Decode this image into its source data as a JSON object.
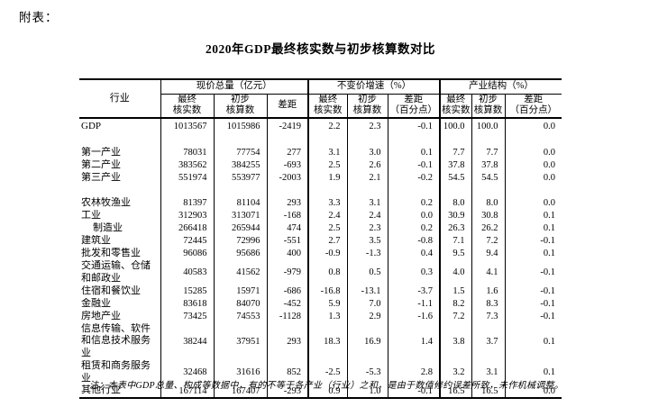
{
  "page": {
    "appendix_label": "附表："
  },
  "table": {
    "title": "2020年GDP最终核实数与初步核算数对比",
    "header": {
      "industry": "行业",
      "groups": [
        {
          "label": "现价总量（亿元）",
          "cols": [
            "最终\n核实数",
            "初步\n核算数",
            "差距"
          ]
        },
        {
          "label": "不变价增速（%）",
          "cols": [
            "最终\n核实数",
            "初步\n核算数",
            "差距\n（百分点）"
          ]
        },
        {
          "label": "产业结构（%）",
          "cols": [
            "最终\n核实数",
            "初步\n核算数",
            "差距\n（百分点）"
          ]
        }
      ]
    },
    "rows": [
      {
        "name": "GDP",
        "gdp": true,
        "values": [
          "1013567",
          "1015986",
          "-2419",
          "2.2",
          "2.3",
          "-0.1",
          "100.0",
          "100.0",
          "0.0"
        ]
      },
      {
        "spacer": true
      },
      {
        "name": "第一产业",
        "values": [
          "78031",
          "77754",
          "277",
          "3.1",
          "3.0",
          "0.1",
          "7.7",
          "7.7",
          "0.0"
        ]
      },
      {
        "name": "第二产业",
        "values": [
          "383562",
          "384255",
          "-693",
          "2.5",
          "2.6",
          "-0.1",
          "37.8",
          "37.8",
          "0.0"
        ]
      },
      {
        "name": "第三产业",
        "values": [
          "551974",
          "553977",
          "-2003",
          "1.9",
          "2.1",
          "-0.2",
          "54.5",
          "54.5",
          "0.0"
        ]
      },
      {
        "spacer": true
      },
      {
        "name": "农林牧渔业",
        "values": [
          "81397",
          "81104",
          "293",
          "3.3",
          "3.1",
          "0.2",
          "8.0",
          "8.0",
          "0.0"
        ]
      },
      {
        "name": "工业",
        "values": [
          "312903",
          "313071",
          "-168",
          "2.4",
          "2.4",
          "0.0",
          "30.9",
          "30.8",
          "0.1"
        ]
      },
      {
        "name": "制造业",
        "indent": true,
        "values": [
          "266418",
          "265944",
          "474",
          "2.5",
          "2.3",
          "0.2",
          "26.3",
          "26.2",
          "0.1"
        ]
      },
      {
        "name": "建筑业",
        "values": [
          "72445",
          "72996",
          "-551",
          "2.7",
          "3.5",
          "-0.8",
          "7.1",
          "7.2",
          "-0.1"
        ]
      },
      {
        "name": "批发和零售业",
        "values": [
          "96086",
          "95686",
          "400",
          "-0.9",
          "-1.3",
          "0.4",
          "9.5",
          "9.4",
          "0.1"
        ]
      },
      {
        "name": "交通运输、仓储和邮政业",
        "values": [
          "40583",
          "41562",
          "-979",
          "0.8",
          "0.5",
          "0.3",
          "4.0",
          "4.1",
          "-0.1"
        ]
      },
      {
        "name": "住宿和餐饮业",
        "values": [
          "15285",
          "15971",
          "-686",
          "-16.8",
          "-13.1",
          "-3.7",
          "1.5",
          "1.6",
          "-0.1"
        ]
      },
      {
        "name": "金融业",
        "values": [
          "83618",
          "84070",
          "-452",
          "5.9",
          "7.0",
          "-1.1",
          "8.2",
          "8.3",
          "-0.1"
        ]
      },
      {
        "name": "房地产业",
        "values": [
          "73425",
          "74553",
          "-1128",
          "1.3",
          "2.9",
          "-1.6",
          "7.2",
          "7.3",
          "-0.1"
        ]
      },
      {
        "name": "信息传输、软件和信息技术服务业",
        "values": [
          "38244",
          "37951",
          "293",
          "18.3",
          "16.9",
          "1.4",
          "3.8",
          "3.7",
          "0.1"
        ]
      },
      {
        "name": "租赁和商务服务业",
        "values": [
          "32468",
          "31616",
          "852",
          "-2.5",
          "-5.3",
          "2.8",
          "3.2",
          "3.1",
          "0.1"
        ]
      },
      {
        "name": "其他行业",
        "values": [
          "167114",
          "167407",
          "-293",
          "0.9",
          "1.0",
          "-0.1",
          "16.5",
          "16.5",
          "0.0"
        ]
      }
    ],
    "note": "注：本表中GDP总量、构成等数据中，有的不等于各产业（行业）之和，是由于数值修约误差所致，未作机械调整。"
  }
}
